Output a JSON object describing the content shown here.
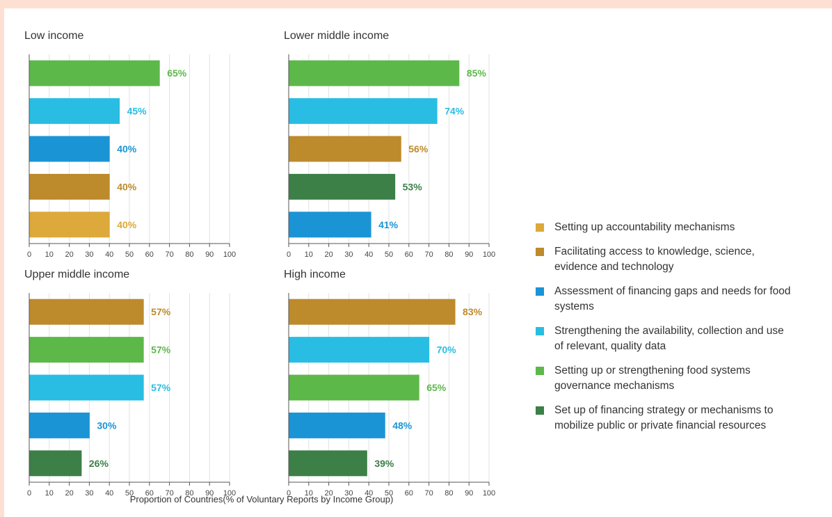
{
  "chart_data": [
    {
      "type": "bar",
      "title": "Low income",
      "categories": [
        "Setting up or strengthening food systems governance mechanisms",
        "Strengthening the availability, collection and use of relevant, quality data",
        "Assessment of financing gaps and needs for food systems",
        "Facilitating access to knowledge, science, evidence and technology",
        "Setting up accountability mechanisms"
      ],
      "values": [
        65,
        45,
        40,
        40,
        40
      ],
      "labels": [
        "65%",
        "45%",
        "40%",
        "40%",
        "40%"
      ],
      "colors": [
        "#5db84a",
        "#29bde3",
        "#1b94d6",
        "#bd8a2c",
        "#dca93a"
      ],
      "ticks": [
        "0",
        "10",
        "20",
        "30",
        "40",
        "50",
        "60",
        "70",
        "80",
        "90",
        "100"
      ],
      "xlim": [
        0,
        100
      ]
    },
    {
      "type": "bar",
      "title": "Lower middle income",
      "categories": [
        "Setting up or strengthening food systems governance mechanisms",
        "Strengthening the availability, collection and use of relevant, quality data",
        "Facilitating access to knowledge, science, evidence and technology",
        "Set up of financing strategy or mechanisms to mobilize public or private financial resources",
        "Assessment of financing gaps and needs for food systems"
      ],
      "values": [
        85,
        74,
        56,
        53,
        41
      ],
      "labels": [
        "85%",
        "74%",
        "56%",
        "53%",
        "41%"
      ],
      "colors": [
        "#5db84a",
        "#29bde3",
        "#bd8a2c",
        "#3c7f47",
        "#1b94d6"
      ],
      "ticks": [
        "0",
        "10",
        "20",
        "30",
        "40",
        "50",
        "60",
        "70",
        "80",
        "90",
        "100"
      ],
      "xlim": [
        0,
        100
      ]
    },
    {
      "type": "bar",
      "title": "Upper middle income",
      "categories": [
        "Facilitating access to knowledge, science, evidence and technology",
        "Setting up or strengthening food systems governance mechanisms",
        "Strengthening the availability, collection and use of relevant, quality data",
        "Assessment of financing gaps and needs for food systems",
        "Set up of financing strategy or mechanisms to mobilize public or private financial resources"
      ],
      "values": [
        57,
        57,
        57,
        30,
        26
      ],
      "labels": [
        "57%",
        "57%",
        "57%",
        "30%",
        "26%"
      ],
      "colors": [
        "#bd8a2c",
        "#5db84a",
        "#29bde3",
        "#1b94d6",
        "#3c7f47"
      ],
      "ticks": [
        "0",
        "10",
        "20",
        "30",
        "40",
        "50",
        "60",
        "70",
        "80",
        "90",
        "100"
      ],
      "xlim": [
        0,
        100
      ]
    },
    {
      "type": "bar",
      "title": "High income",
      "categories": [
        "Facilitating access to knowledge, science, evidence and technology",
        "Strengthening the availability, collection and use of relevant, quality data",
        "Setting up or strengthening food systems governance mechanisms",
        "Assessment of financing gaps and needs for food systems",
        "Set up of financing strategy or mechanisms to mobilize public or private financial resources"
      ],
      "values": [
        83,
        70,
        65,
        48,
        39
      ],
      "labels": [
        "83%",
        "70%",
        "65%",
        "48%",
        "39%"
      ],
      "colors": [
        "#bd8a2c",
        "#29bde3",
        "#5db84a",
        "#1b94d6",
        "#3c7f47"
      ],
      "ticks": [
        "0",
        "10",
        "20",
        "30",
        "40",
        "50",
        "60",
        "70",
        "80",
        "90",
        "100"
      ],
      "xlim": [
        0,
        100
      ]
    }
  ],
  "x_axis_title": "Proportion of Countries(% of Voluntary Reports by Income Group)",
  "legend": [
    {
      "label": "Setting up accountability mechanisms",
      "color": "#dca93a"
    },
    {
      "label": "Facilitating access to knowledge, science, evidence and technology",
      "color": "#bd8a2c"
    },
    {
      "label": "Assessment of financing gaps and needs for food systems",
      "color": "#1b94d6"
    },
    {
      "label": "Strengthening the availability, collection and use of relevant, quality data",
      "color": "#29bde3"
    },
    {
      "label": "Setting up or strengthening food systems governance mechanisms",
      "color": "#5db84a"
    },
    {
      "label": "Set up of financing strategy or mechanisms to mobilize public or private financial resources",
      "color": "#3c7f47"
    }
  ],
  "colors": {
    "page_border": "#fde0d2",
    "background": "#ffffff",
    "grid": "#e2e2e2",
    "axis": "#555555"
  }
}
